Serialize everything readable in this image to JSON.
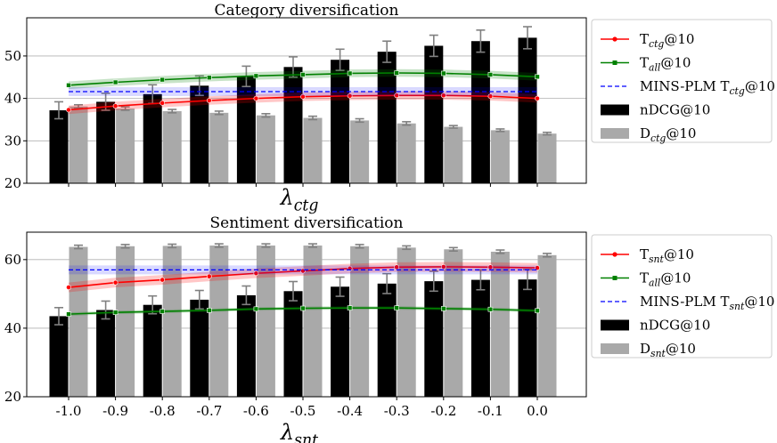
{
  "chart_data": [
    {
      "type": "bar",
      "title": "Category diversification",
      "xlabel_base": "λ",
      "xlabel_sub": "ctg",
      "ylim": [
        20,
        59
      ],
      "yticks": [
        20,
        30,
        40,
        50
      ],
      "categories": [
        "-1.0",
        "-0.9",
        "-0.8",
        "-0.7",
        "-0.6",
        "-0.5",
        "-0.4",
        "-0.3",
        "-0.2",
        "-0.1",
        "0.0"
      ],
      "show_xtick_labels": false,
      "bar_series": [
        {
          "key": "ndcg",
          "base": "nDCG@10",
          "sub": "",
          "color": "#000000",
          "errcolor": "#808080",
          "values": [
            37.2,
            39.2,
            41.0,
            43.0,
            45.2,
            47.4,
            49.1,
            51.0,
            52.4,
            53.5,
            54.3
          ],
          "errors": [
            2.0,
            2.0,
            2.2,
            2.3,
            2.4,
            2.4,
            2.5,
            2.5,
            2.5,
            2.6,
            2.6
          ]
        },
        {
          "key": "div",
          "base": "D",
          "sub": "ctg",
          "suffix": "@10",
          "color": "#a9a9a9",
          "errcolor": "#808080",
          "values": [
            38.1,
            37.6,
            37.0,
            36.6,
            36.0,
            35.4,
            34.8,
            34.1,
            33.3,
            32.5,
            31.7
          ],
          "errors": [
            0.4,
            0.4,
            0.4,
            0.4,
            0.4,
            0.4,
            0.4,
            0.4,
            0.3,
            0.3,
            0.3
          ]
        }
      ],
      "line_series": [
        {
          "key": "t_ctg",
          "base": "T",
          "sub": "ctg",
          "suffix": "@10",
          "color": "#ff0000",
          "marker": "circle",
          "values": [
            37.3,
            38.2,
            38.9,
            39.5,
            40.0,
            40.4,
            40.6,
            40.7,
            40.7,
            40.5,
            40.0
          ],
          "band": 1.0
        },
        {
          "key": "t_all",
          "base": "T",
          "sub": "all",
          "suffix": "@10",
          "color": "#008000",
          "marker": "square",
          "values": [
            43.1,
            43.8,
            44.4,
            44.9,
            45.3,
            45.6,
            45.9,
            46.0,
            45.9,
            45.6,
            45.1
          ],
          "band": 0.9
        },
        {
          "key": "mins",
          "base": "MINS-PLM T",
          "sub": "ctg",
          "suffix": "@10",
          "color": "#0000ff",
          "dashed": true,
          "flat_value": 41.6
        }
      ],
      "legend_order": [
        "t_ctg",
        "t_all",
        "mins",
        "ndcg",
        "div"
      ]
    },
    {
      "type": "bar",
      "title": "Sentiment diversification",
      "xlabel_base": "λ",
      "xlabel_sub": "snt",
      "ylim": [
        20,
        68
      ],
      "yticks": [
        20,
        40,
        60
      ],
      "categories": [
        "-1.0",
        "-0.9",
        "-0.8",
        "-0.7",
        "-0.6",
        "-0.5",
        "-0.4",
        "-0.3",
        "-0.2",
        "-0.1",
        "0.0"
      ],
      "show_xtick_labels": true,
      "bar_series": [
        {
          "key": "ndcg",
          "base": "nDCG@10",
          "sub": "",
          "color": "#000000",
          "errcolor": "#808080",
          "values": [
            43.5,
            45.3,
            46.8,
            48.3,
            49.6,
            50.8,
            52.1,
            53.0,
            53.7,
            54.1,
            54.2
          ],
          "errors": [
            2.5,
            2.6,
            2.6,
            2.7,
            2.7,
            2.8,
            2.8,
            2.9,
            2.9,
            2.9,
            2.9
          ]
        },
        {
          "key": "div",
          "base": "D",
          "sub": "snt",
          "suffix": "@10",
          "color": "#a9a9a9",
          "errcolor": "#808080",
          "values": [
            63.7,
            63.9,
            64.0,
            64.1,
            64.1,
            64.1,
            63.9,
            63.5,
            63.0,
            62.3,
            61.3
          ],
          "errors": [
            0.5,
            0.5,
            0.5,
            0.5,
            0.5,
            0.5,
            0.5,
            0.5,
            0.5,
            0.5,
            0.5
          ]
        }
      ],
      "line_series": [
        {
          "key": "t_snt",
          "base": "T",
          "sub": "snt",
          "suffix": "@10",
          "color": "#ff0000",
          "marker": "circle",
          "values": [
            51.9,
            53.3,
            54.1,
            55.1,
            56.0,
            56.7,
            57.4,
            57.8,
            57.9,
            57.8,
            57.6
          ],
          "band": 1.4
        },
        {
          "key": "t_all",
          "base": "T",
          "sub": "all",
          "suffix": "@10",
          "color": "#008000",
          "marker": "square",
          "values": [
            44.1,
            44.6,
            44.9,
            45.2,
            45.6,
            45.8,
            45.9,
            45.9,
            45.7,
            45.5,
            45.1
          ],
          "band": 0.5
        },
        {
          "key": "mins",
          "base": "MINS-PLM T",
          "sub": "snt",
          "suffix": "@10",
          "color": "#0000ff",
          "dashed": true,
          "flat_value": 57.0
        }
      ],
      "legend_order": [
        "t_snt",
        "t_all",
        "mins",
        "ndcg",
        "div"
      ]
    }
  ]
}
